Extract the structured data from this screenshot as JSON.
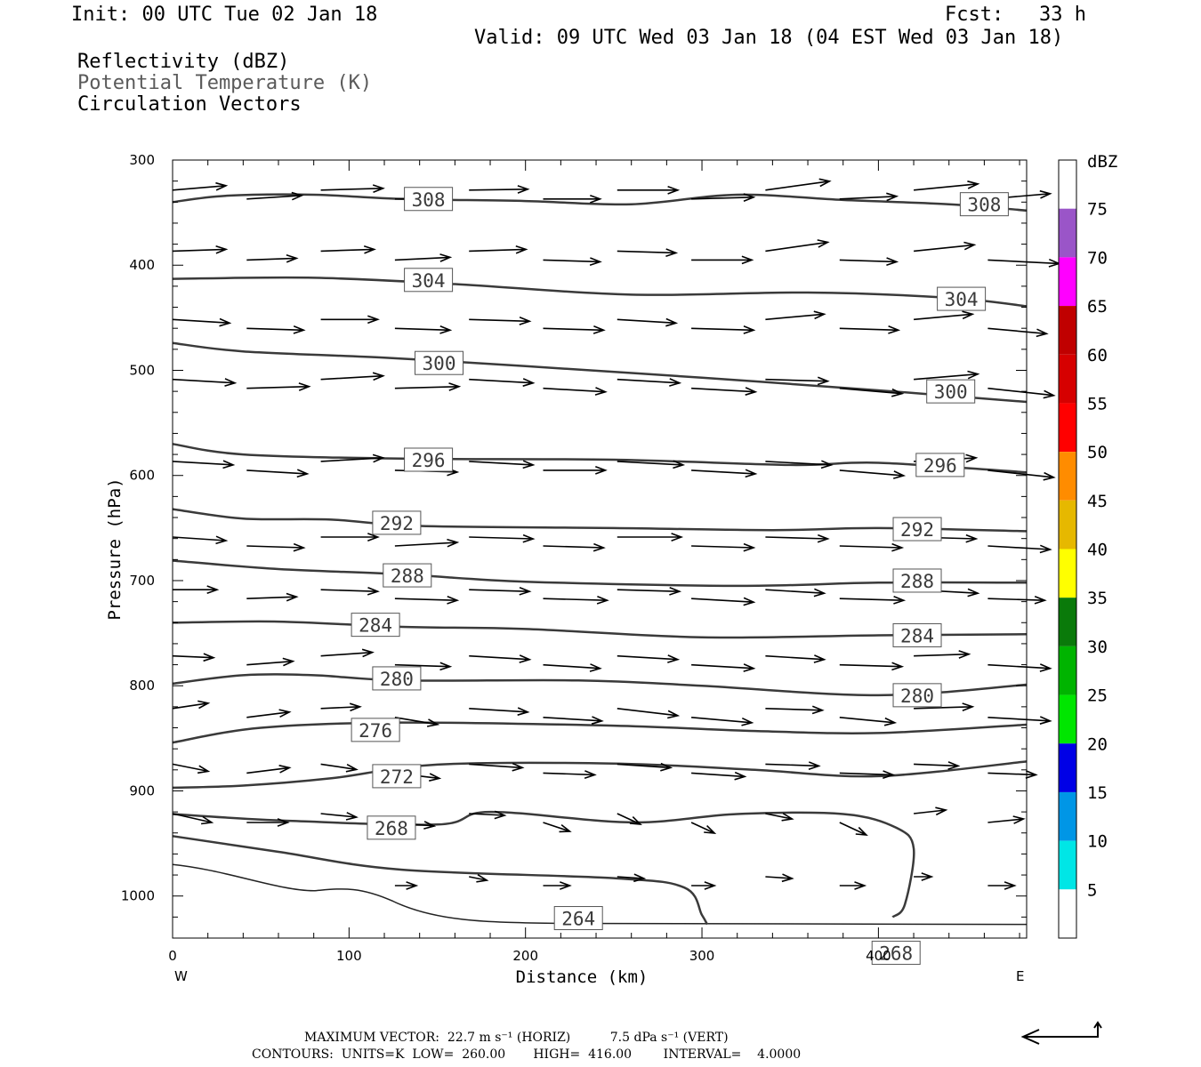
{
  "header": {
    "init": "Init: 00 UTC Tue 02 Jan 18",
    "fcst": "Fcst:   33 h",
    "valid": "Valid: 09 UTC Wed 03 Jan 18 (04 EST Wed 03 Jan 18)"
  },
  "fields": {
    "reflectivity": "Reflectivity (dBZ)",
    "theta": "Potential Temperature (K)",
    "vectors": "Circulation Vectors"
  },
  "colorbar": {
    "unit": "dBZ",
    "labels": [
      "75",
      "70",
      "65",
      "60",
      "55",
      "50",
      "45",
      "40",
      "35",
      "30",
      "25",
      "20",
      "15",
      "10",
      "5"
    ],
    "colors": [
      "#ffffff",
      "#9a55c8",
      "#ff00ff",
      "#c00000",
      "#d60000",
      "#ff0000",
      "#ff8c00",
      "#e6b800",
      "#ffff00",
      "#0a7a0a",
      "#00b400",
      "#00e600",
      "#0000e6",
      "#0096e6",
      "#00e6e6",
      "#ffffff"
    ]
  },
  "footer": {
    "max_vector": "MAXIMUM VECTOR:  22.7 m s⁻¹ (HORIZ)          7.5 dPa s⁻¹ (VERT)",
    "contours": "CONTOURS:  UNITS=K  LOW=  260.00       HIGH=  416.00        INTERVAL=    4.0000"
  },
  "chart_data": {
    "type": "line",
    "xlabel": "Distance (km)",
    "ylabel": "Pressure (hPa)",
    "xlim": [
      0,
      484
    ],
    "ylim": [
      1040,
      300
    ],
    "x_ticks": [
      0,
      100,
      200,
      300,
      400
    ],
    "y_ticks": [
      300,
      400,
      500,
      600,
      700,
      800,
      900,
      1000
    ],
    "x_end_labels": {
      "left": "W",
      "right": "E"
    },
    "contour_label_values": [
      "308",
      "304",
      "300",
      "296",
      "292",
      "288",
      "284",
      "280",
      "276",
      "272",
      "268",
      "264"
    ],
    "series": [
      {
        "label": "308",
        "label_at": [
          [
            145,
            337
          ],
          [
            460,
            342
          ]
        ],
        "points": [
          [
            0,
            340
          ],
          [
            30,
            334
          ],
          [
            80,
            333
          ],
          [
            130,
            337
          ],
          [
            200,
            339
          ],
          [
            260,
            342
          ],
          [
            320,
            333
          ],
          [
            380,
            338
          ],
          [
            440,
            342
          ],
          [
            484,
            348
          ]
        ]
      },
      {
        "label": "304",
        "label_at": [
          [
            145,
            414
          ],
          [
            447,
            432
          ]
        ],
        "points": [
          [
            0,
            413
          ],
          [
            80,
            412
          ],
          [
            160,
            418
          ],
          [
            260,
            428
          ],
          [
            360,
            426
          ],
          [
            440,
            431
          ],
          [
            484,
            439
          ]
        ]
      },
      {
        "label": "300",
        "label_at": [
          [
            151,
            493
          ],
          [
            441,
            520
          ]
        ],
        "points": [
          [
            0,
            474
          ],
          [
            40,
            482
          ],
          [
            120,
            488
          ],
          [
            200,
            496
          ],
          [
            300,
            507
          ],
          [
            400,
            519
          ],
          [
            484,
            530
          ]
        ]
      },
      {
        "label": "296",
        "label_at": [
          [
            145,
            585
          ],
          [
            435,
            590
          ]
        ],
        "points": [
          [
            0,
            570
          ],
          [
            40,
            580
          ],
          [
            130,
            584
          ],
          [
            250,
            585
          ],
          [
            350,
            590
          ],
          [
            400,
            588
          ],
          [
            484,
            597
          ]
        ]
      },
      {
        "label": "292",
        "label_at": [
          [
            127,
            645
          ],
          [
            422,
            651
          ]
        ],
        "points": [
          [
            0,
            632
          ],
          [
            40,
            641
          ],
          [
            90,
            642
          ],
          [
            140,
            648
          ],
          [
            250,
            650
          ],
          [
            340,
            652
          ],
          [
            400,
            650
          ],
          [
            484,
            653
          ]
        ]
      },
      {
        "label": "288",
        "label_at": [
          [
            133,
            695
          ],
          [
            422,
            700
          ]
        ],
        "points": [
          [
            0,
            681
          ],
          [
            60,
            689
          ],
          [
            130,
            694
          ],
          [
            200,
            701
          ],
          [
            320,
            705
          ],
          [
            400,
            702
          ],
          [
            484,
            702
          ]
        ]
      },
      {
        "label": "284",
        "label_at": [
          [
            115,
            742
          ],
          [
            422,
            752
          ]
        ],
        "points": [
          [
            0,
            740
          ],
          [
            60,
            739
          ],
          [
            130,
            744
          ],
          [
            200,
            746
          ],
          [
            300,
            754
          ],
          [
            400,
            752
          ],
          [
            484,
            751
          ]
        ]
      },
      {
        "label": "280",
        "label_at": [
          [
            127,
            793
          ],
          [
            422,
            809
          ]
        ],
        "points": [
          [
            0,
            798
          ],
          [
            40,
            790
          ],
          [
            80,
            790
          ],
          [
            130,
            795
          ],
          [
            230,
            795
          ],
          [
            300,
            800
          ],
          [
            400,
            809
          ],
          [
            484,
            799
          ]
        ]
      },
      {
        "label": "276",
        "label_at": [
          [
            115,
            842
          ],
          [
            -1,
            -1
          ]
        ],
        "points": [
          [
            0,
            854
          ],
          [
            50,
            840
          ],
          [
            130,
            835
          ],
          [
            250,
            838
          ],
          [
            330,
            843
          ],
          [
            400,
            845
          ],
          [
            484,
            837
          ]
        ]
      },
      {
        "label": "272",
        "label_at": [
          [
            127,
            886
          ],
          [
            484,
            -1
          ]
        ],
        "points": [
          [
            0,
            897
          ],
          [
            40,
            895
          ],
          [
            90,
            888
          ],
          [
            150,
            875
          ],
          [
            250,
            874
          ],
          [
            330,
            880
          ],
          [
            400,
            886
          ],
          [
            484,
            872
          ]
        ]
      },
      {
        "label": "268",
        "label_at": [
          [
            124,
            935
          ],
          [
            410,
            1054
          ]
        ],
        "points": [
          [
            0,
            922
          ],
          [
            60,
            928
          ],
          [
            150,
            932
          ],
          [
            180,
            920
          ],
          [
            260,
            930
          ],
          [
            320,
            922
          ],
          [
            380,
            922
          ],
          [
            410,
            935
          ],
          [
            420,
            955
          ],
          [
            415,
            1008
          ],
          [
            408,
            1020
          ]
        ]
      },
      {
        "label": "264",
        "label_at": [
          [
            230,
            1021
          ],
          [
            -1,
            -1
          ]
        ],
        "points": [
          [
            0,
            943
          ],
          [
            60,
            958
          ],
          [
            130,
            975
          ],
          [
            250,
            983
          ],
          [
            290,
            992
          ],
          [
            300,
            1018
          ],
          [
            303,
            1027
          ]
        ]
      }
    ],
    "reflectivity_max_dbz": 0
  }
}
